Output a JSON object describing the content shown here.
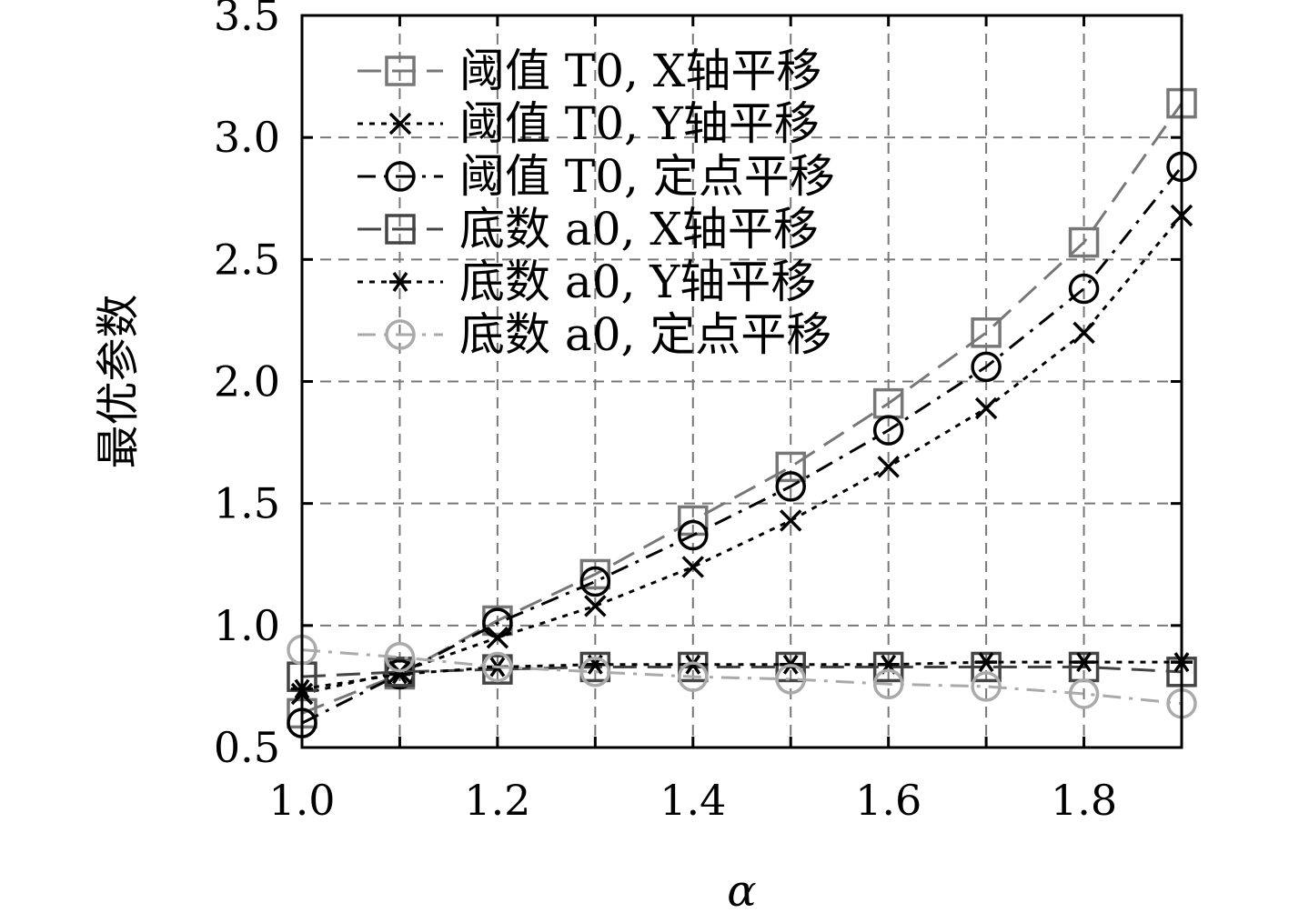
{
  "chart_data": {
    "type": "line",
    "xlabel": "α",
    "ylabel": "最优参数",
    "xlim": [
      1.0,
      1.9
    ],
    "ylim": [
      0.5,
      3.5
    ],
    "xticks": [
      1.0,
      1.2,
      1.4,
      1.6,
      1.8
    ],
    "xtick_labels": [
      "1.0",
      "1.2",
      "1.4",
      "1.6",
      "1.8"
    ],
    "yticks": [
      0.5,
      1.0,
      1.5,
      2.0,
      2.5,
      3.0,
      3.5
    ],
    "ytick_labels": [
      "0.5",
      "1.0",
      "1.5",
      "2.0",
      "2.5",
      "3.0",
      "3.5"
    ],
    "grid": true,
    "legend_position": "top-left",
    "x": [
      1.0,
      1.1,
      1.2,
      1.3,
      1.4,
      1.5,
      1.6,
      1.7,
      1.8,
      1.9
    ],
    "series": [
      {
        "name": "阈值 T0, X轴平移",
        "marker": "square",
        "dash": "long-dash",
        "color": "#777777",
        "values": [
          0.64,
          0.8,
          1.02,
          1.21,
          1.43,
          1.65,
          1.91,
          2.2,
          2.57,
          3.14
        ]
      },
      {
        "name": "阈值 T0, Y轴平移",
        "marker": "x",
        "dash": "dotted",
        "color": "#000000",
        "values": [
          0.72,
          0.81,
          0.95,
          1.08,
          1.24,
          1.43,
          1.65,
          1.89,
          2.2,
          2.68
        ]
      },
      {
        "name": "阈值 T0, 定点平移",
        "marker": "circle",
        "dash": "dash-dot",
        "color": "#000000",
        "values": [
          0.6,
          0.8,
          1.01,
          1.18,
          1.37,
          1.57,
          1.8,
          2.06,
          2.38,
          2.88
        ]
      },
      {
        "name": "底数 a0, X轴平移",
        "marker": "square",
        "dash": "long-dash",
        "color": "#444444",
        "values": [
          0.79,
          0.81,
          0.82,
          0.83,
          0.83,
          0.83,
          0.83,
          0.83,
          0.83,
          0.81
        ]
      },
      {
        "name": "底数 a0, Y轴平移",
        "marker": "asterisk",
        "dash": "dotted",
        "color": "#000000",
        "values": [
          0.74,
          0.8,
          0.83,
          0.84,
          0.84,
          0.84,
          0.84,
          0.85,
          0.85,
          0.85
        ]
      },
      {
        "name": "底数 a0, 定点平移",
        "marker": "circle",
        "dash": "dash-dot",
        "color": "#aaaaaa",
        "values": [
          0.9,
          0.87,
          0.83,
          0.81,
          0.79,
          0.78,
          0.76,
          0.75,
          0.72,
          0.68
        ]
      }
    ]
  }
}
